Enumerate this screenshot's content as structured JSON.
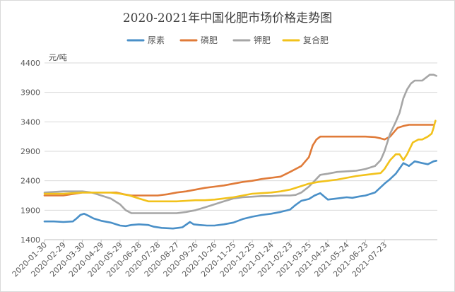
{
  "chart_data": {
    "type": "line",
    "title": "2020-2021年中国化肥市场价格走势图",
    "ylabel": "元/吨",
    "ylim": [
      1400,
      4400
    ],
    "yticks": [
      1400,
      1900,
      2400,
      2900,
      3400,
      3900,
      4400
    ],
    "xlim": [
      0,
      20.8
    ],
    "categories": [
      "2020-01-30",
      "2020-02-29",
      "2020-03-30",
      "2020-04-29",
      "2020-05-29",
      "2020-06-28",
      "2020-07-28",
      "2020-08-27",
      "2020-09-26",
      "2020-10-26",
      "2020-11-25",
      "2020-12-25",
      "2021-01-24",
      "2021-02-23",
      "2021-03-25",
      "2021-04-24",
      "2021-05-24",
      "2021-06-23",
      "2021-07-23"
    ],
    "legend": [
      "尿素",
      "磷肥",
      "钾肥",
      "复合肥"
    ],
    "grid": true,
    "series": [
      {
        "name": "尿素",
        "color": "#4a90c8",
        "x": [
          0,
          0.5,
          1,
          1.5,
          1.7,
          1.9,
          2.1,
          2.3,
          2.6,
          3,
          3.5,
          4,
          4.3,
          4.6,
          5,
          5.5,
          5.8,
          6.2,
          6.8,
          7.3,
          7.7,
          7.9,
          8.2,
          8.6,
          9,
          9.5,
          10,
          10.5,
          11,
          11.5,
          12,
          12.5,
          13,
          13.3,
          13.6,
          14,
          14.3,
          14.6,
          15,
          15.5,
          16,
          16.3,
          16.6,
          17,
          17.5,
          18,
          18.3,
          18.6,
          19,
          19.3,
          19.6,
          20,
          20.3,
          20.6,
          20.75
        ],
        "values": [
          1710,
          1710,
          1700,
          1710,
          1760,
          1820,
          1840,
          1810,
          1760,
          1720,
          1690,
          1640,
          1630,
          1650,
          1660,
          1650,
          1620,
          1600,
          1590,
          1610,
          1700,
          1660,
          1650,
          1640,
          1640,
          1660,
          1690,
          1750,
          1790,
          1820,
          1840,
          1870,
          1910,
          1990,
          2060,
          2090,
          2150,
          2190,
          2080,
          2100,
          2120,
          2110,
          2130,
          2150,
          2200,
          2350,
          2430,
          2520,
          2700,
          2650,
          2730,
          2700,
          2680,
          2730,
          2740
        ]
      },
      {
        "name": "磷肥",
        "color": "#e07b39",
        "x": [
          0,
          1,
          2,
          3,
          3.8,
          4.2,
          4.6,
          5.5,
          6,
          6.5,
          7,
          7.5,
          8,
          8.5,
          9,
          9.5,
          10,
          10.5,
          11,
          11.5,
          12,
          12.5,
          13,
          13.3,
          13.6,
          14,
          14.2,
          14.4,
          14.6,
          15,
          16,
          17,
          17.5,
          17.8,
          18,
          18.3,
          18.7,
          19,
          19.3,
          20,
          20.3,
          20.6
        ],
        "values": [
          2150,
          2150,
          2200,
          2200,
          2200,
          2170,
          2150,
          2150,
          2150,
          2170,
          2200,
          2220,
          2250,
          2280,
          2300,
          2320,
          2350,
          2380,
          2400,
          2430,
          2450,
          2470,
          2550,
          2600,
          2650,
          2800,
          3000,
          3100,
          3150,
          3150,
          3150,
          3150,
          3140,
          3120,
          3100,
          3150,
          3300,
          3330,
          3350,
          3350,
          3350,
          3350
        ]
      },
      {
        "name": "钾肥",
        "color": "#a6a6a6",
        "x": [
          0,
          1,
          2,
          2.5,
          3,
          3.5,
          4,
          4.3,
          4.6,
          5,
          5.5,
          6,
          6.5,
          7,
          7.5,
          8,
          8.5,
          9,
          9.5,
          10,
          10.5,
          11,
          11.5,
          12,
          12.5,
          13,
          13.3,
          13.6,
          14,
          14.3,
          14.6,
          15,
          15.5,
          16,
          16.5,
          17,
          17.5,
          17.8,
          18,
          18.3,
          18.6,
          18.8,
          19,
          19.2,
          19.4,
          19.6,
          19.8,
          20,
          20.2,
          20.4,
          20.6,
          20.75
        ],
        "values": [
          2200,
          2220,
          2220,
          2200,
          2150,
          2100,
          2000,
          1900,
          1850,
          1850,
          1850,
          1850,
          1850,
          1850,
          1870,
          1900,
          1950,
          2000,
          2050,
          2100,
          2120,
          2130,
          2140,
          2140,
          2150,
          2150,
          2160,
          2200,
          2300,
          2400,
          2500,
          2520,
          2550,
          2560,
          2570,
          2600,
          2650,
          2750,
          2900,
          3200,
          3400,
          3550,
          3800,
          3950,
          4050,
          4100,
          4100,
          4100,
          4150,
          4200,
          4200,
          4180
        ]
      },
      {
        "name": "复合肥",
        "color": "#f2c21b",
        "x": [
          0,
          1,
          2,
          3,
          3.5,
          4,
          4.5,
          5,
          5.5,
          6,
          6.5,
          7,
          7.5,
          8,
          8.5,
          9,
          9.5,
          10,
          10.5,
          11,
          11.5,
          12,
          12.5,
          13,
          13.5,
          14,
          14.5,
          15,
          15.5,
          16,
          16.5,
          17,
          17.5,
          17.8,
          18,
          18.3,
          18.6,
          18.8,
          19,
          19.2,
          19.5,
          19.8,
          20,
          20.3,
          20.5,
          20.6,
          20.7
        ],
        "values": [
          2180,
          2180,
          2200,
          2200,
          2200,
          2180,
          2150,
          2100,
          2050,
          2050,
          2050,
          2050,
          2060,
          2070,
          2070,
          2080,
          2100,
          2120,
          2150,
          2180,
          2190,
          2200,
          2220,
          2250,
          2300,
          2350,
          2380,
          2400,
          2420,
          2450,
          2480,
          2500,
          2520,
          2530,
          2600,
          2750,
          2850,
          2850,
          2750,
          2850,
          3050,
          3100,
          3100,
          3150,
          3200,
          3300,
          3420
        ]
      }
    ]
  }
}
